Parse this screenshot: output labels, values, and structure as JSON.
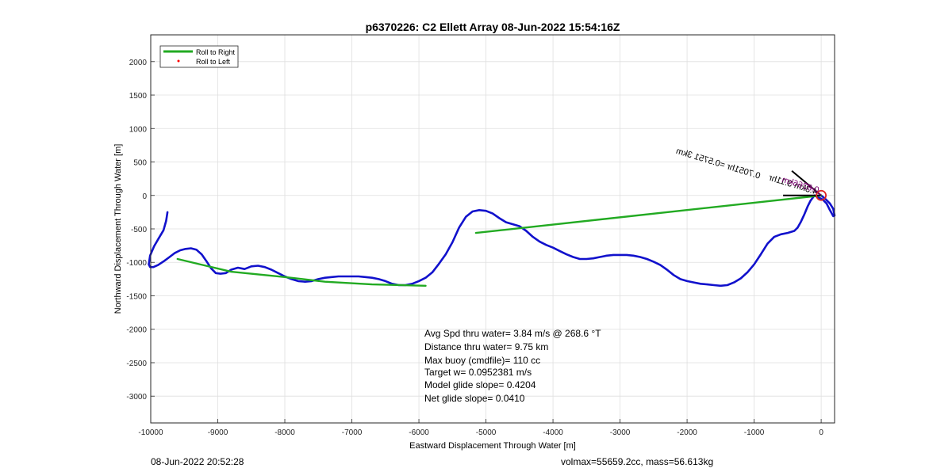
{
  "chart_data": {
    "type": "line",
    "title": "p6370226: C2 Ellett Array 08-Jun-2022 15:54:16Z",
    "xlabel": "Eastward Displacement Through Water [m]",
    "ylabel": "Northward Displacement Through Water [m]",
    "xlim": [
      -10000,
      200
    ],
    "ylim": [
      -3400,
      2400
    ],
    "xticks": [
      -10000,
      -9000,
      -8000,
      -7000,
      -6000,
      -5000,
      -4000,
      -3000,
      -2000,
      -1000,
      0
    ],
    "yticks": [
      2000,
      1500,
      1000,
      500,
      0,
      -500,
      -1000,
      -1500,
      -2000,
      -2500,
      -3000
    ],
    "grid": true,
    "legend": {
      "placement": "top-left",
      "entries": [
        {
          "label": "Roll to Right",
          "color": "#22aa22",
          "style": "line"
        },
        {
          "label": "Roll to Left",
          "color": "#ff0000",
          "style": "dot"
        }
      ]
    },
    "series": [
      {
        "color": "#1111cc",
        "x": [
          -9750,
          -9770,
          -9810,
          -9880,
          -9950,
          -10010,
          -10030,
          -10010,
          -9960,
          -9890,
          -9800,
          -9720,
          -9640,
          -9560,
          -9480,
          -9400,
          -9320,
          -9240,
          -9170,
          -9100,
          -9030,
          -8960,
          -8880,
          -8800,
          -8700,
          -8600,
          -8500,
          -8400,
          -8300,
          -8200,
          -8100,
          -8000,
          -7900,
          -7800,
          -7700,
          -7600,
          -7500,
          -7400,
          -7300,
          -7200,
          -7100,
          -7000,
          -6900,
          -6800,
          -6700,
          -6600,
          -6500,
          -6400,
          -6300,
          -6200,
          -6100,
          -6000,
          -5900,
          -5800,
          -5700,
          -5600,
          -5500,
          -5400,
          -5300,
          -5200,
          -5100,
          -5000,
          -4900,
          -4800,
          -4700,
          -4600,
          -4500,
          -4400,
          -4300,
          -4200,
          -4100,
          -4000,
          -3900,
          -3800,
          -3700,
          -3600,
          -3500,
          -3400,
          -3300,
          -3200,
          -3100,
          -3000,
          -2900,
          -2800,
          -2700,
          -2600,
          -2500,
          -2400,
          -2300,
          -2200,
          -2100,
          -2000,
          -1900,
          -1800,
          -1700,
          -1600,
          -1500,
          -1400,
          -1300,
          -1200,
          -1100,
          -1000,
          -900,
          -800,
          -700,
          -600,
          -500,
          -400,
          -350,
          -300,
          -250,
          -200,
          -160,
          -100,
          -40,
          20,
          80,
          130,
          180,
          200,
          180,
          130,
          60,
          0
        ],
        "y": [
          -250,
          -380,
          -520,
          -640,
          -760,
          -900,
          -1030,
          -1070,
          -1070,
          -1040,
          -980,
          -920,
          -860,
          -820,
          -800,
          -790,
          -810,
          -880,
          -980,
          -1090,
          -1160,
          -1170,
          -1160,
          -1110,
          -1080,
          -1100,
          -1060,
          -1050,
          -1070,
          -1110,
          -1160,
          -1210,
          -1250,
          -1280,
          -1290,
          -1280,
          -1250,
          -1230,
          -1220,
          -1210,
          -1210,
          -1210,
          -1210,
          -1220,
          -1230,
          -1250,
          -1280,
          -1320,
          -1340,
          -1340,
          -1320,
          -1280,
          -1230,
          -1150,
          -1020,
          -880,
          -700,
          -480,
          -320,
          -240,
          -220,
          -230,
          -270,
          -340,
          -400,
          -430,
          -460,
          -530,
          -620,
          -690,
          -740,
          -780,
          -830,
          -880,
          -920,
          -950,
          -950,
          -940,
          -920,
          -900,
          -890,
          -890,
          -890,
          -900,
          -920,
          -950,
          -990,
          -1040,
          -1110,
          -1190,
          -1250,
          -1280,
          -1300,
          -1320,
          -1330,
          -1340,
          -1350,
          -1340,
          -1300,
          -1240,
          -1150,
          -1030,
          -880,
          -720,
          -620,
          -580,
          -560,
          -530,
          -480,
          -390,
          -280,
          -160,
          -80,
          0,
          -30,
          -60,
          -120,
          -220,
          -310,
          -300,
          -200,
          -120,
          -50,
          0
        ]
      },
      {
        "color": "#22aa22",
        "x": [
          0,
          -5150
        ],
        "y": [
          0,
          -560
        ]
      },
      {
        "color": "#22aa22",
        "x": [
          -5900,
          -6700,
          -7400,
          -8000,
          -8800,
          -9600
        ],
        "y": [
          -1350,
          -1330,
          -1290,
          -1220,
          -1140,
          -950
        ]
      }
    ],
    "annotations": [
      "4.3km 3.11hr",
      "0.8266km",
      "0.7051hr =0.5751 3km"
    ],
    "stats_text": [
      "Avg Spd thru water=  3.84 m/s @ 268.6 °T",
      "Distance thru water=  9.75 km",
      "Max buoy (cmdfile)= 110 cc",
      "Target w= 0.0952381 m/s",
      "Model glide slope= 0.4204",
      "Net glide slope= 0.0410"
    ]
  },
  "footer": {
    "left": "08-Jun-2022 20:52:28",
    "right": "volmax=55659.2cc, mass=56.613kg"
  }
}
